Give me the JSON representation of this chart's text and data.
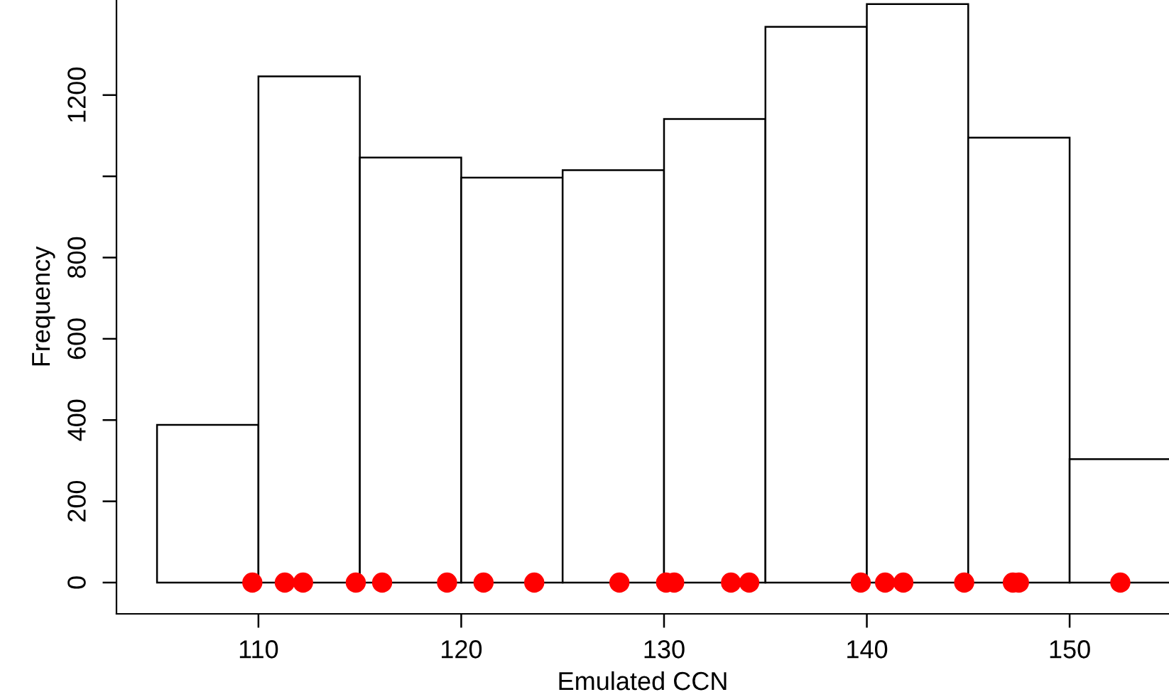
{
  "chart_data": {
    "type": "histogram",
    "xlabel": "Emulated CCN",
    "ylabel": "Frequency",
    "bins": [
      105,
      110,
      115,
      120,
      125,
      130,
      135,
      140,
      145,
      150,
      155
    ],
    "values": [
      388,
      1246,
      1046,
      997,
      1015,
      1141,
      1368,
      1424,
      1095,
      304
    ],
    "color": "#ffffff",
    "series": [
      {
        "type": "scatter",
        "color": "#ff0000",
        "marker": "circle",
        "x": [
          109.7,
          111.3,
          112.2,
          114.8,
          116.1,
          119.3,
          121.1,
          123.6,
          127.8,
          130.1,
          130.5,
          133.3,
          134.2,
          139.7,
          140.9,
          141.8,
          144.8,
          147.2,
          147.5,
          152.5
        ],
        "values": [
          0,
          0,
          0,
          0,
          0,
          0,
          0,
          0,
          0,
          0,
          0,
          0,
          0,
          0,
          0,
          0,
          0,
          0,
          0,
          0
        ]
      }
    ],
    "xlim": [
      103,
      154.9
    ],
    "ylim": [
      -77,
      1434
    ],
    "xticks": [
      110,
      120,
      130,
      140,
      150
    ],
    "yticks": [
      0,
      200,
      400,
      600,
      800,
      {
        "value": 1000,
        "label": null
      },
      1200
    ],
    "grid": false,
    "legend": false
  }
}
